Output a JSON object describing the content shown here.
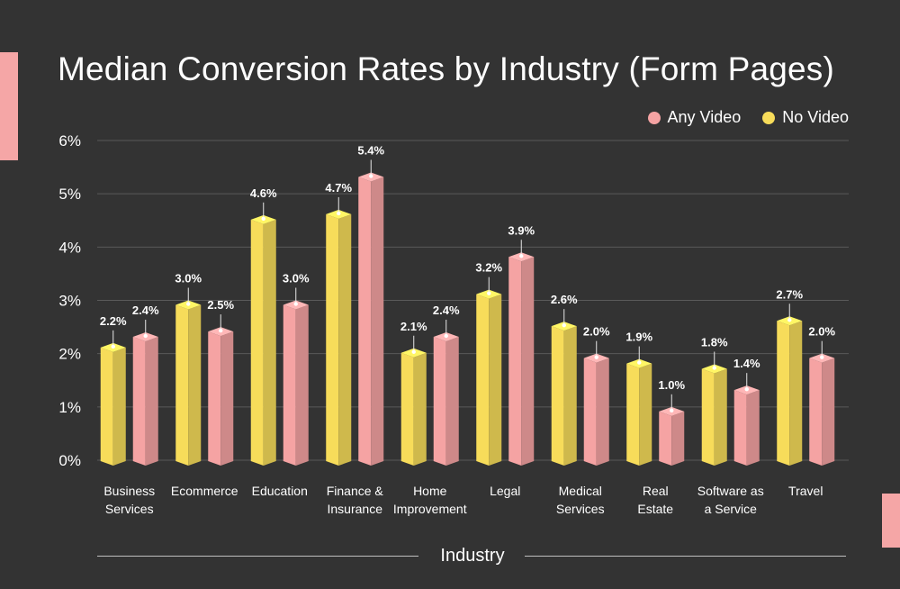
{
  "chart_data": {
    "type": "bar",
    "title": "Median Conversion Rates by Industry (Form Pages)",
    "xlabel": "Industry",
    "ylabel": "",
    "ylim": [
      0,
      6
    ],
    "yticks": [
      "0%",
      "1%",
      "2%",
      "3%",
      "4%",
      "5%",
      "6%"
    ],
    "grid": true,
    "legend_position": "top-right",
    "categories": [
      [
        "Business",
        "Services"
      ],
      [
        "Ecommerce"
      ],
      [
        "Education"
      ],
      [
        "Finance &",
        "Insurance"
      ],
      [
        "Home",
        "Improvement"
      ],
      [
        "Legal"
      ],
      [
        "Medical",
        "Services"
      ],
      [
        "Real",
        "Estate"
      ],
      [
        "Software as",
        "a Service"
      ],
      [
        "Travel"
      ]
    ],
    "series": [
      {
        "name": "No Video",
        "color": "#f7dc5a",
        "values": [
          2.2,
          3.0,
          4.6,
          4.7,
          2.1,
          3.2,
          2.6,
          1.9,
          1.8,
          2.7
        ],
        "labels": [
          "2.2%",
          "3.0%",
          "4.6%",
          "4.7%",
          "2.1%",
          "3.2%",
          "2.6%",
          "1.9%",
          "1.8%",
          "2.7%"
        ]
      },
      {
        "name": "Any Video",
        "color": "#f5a3a3",
        "values": [
          2.4,
          2.5,
          3.0,
          5.4,
          2.4,
          3.9,
          2.0,
          1.0,
          1.4,
          2.0
        ],
        "labels": [
          "2.4%",
          "2.5%",
          "3.0%",
          "5.4%",
          "2.4%",
          "3.9%",
          "2.0%",
          "1.0%",
          "1.4%",
          "2.0%"
        ]
      }
    ]
  },
  "legend": {
    "any_video": "Any Video",
    "no_video": "No Video",
    "any_video_color": "#f5a3a3",
    "no_video_color": "#f7dc5a"
  }
}
